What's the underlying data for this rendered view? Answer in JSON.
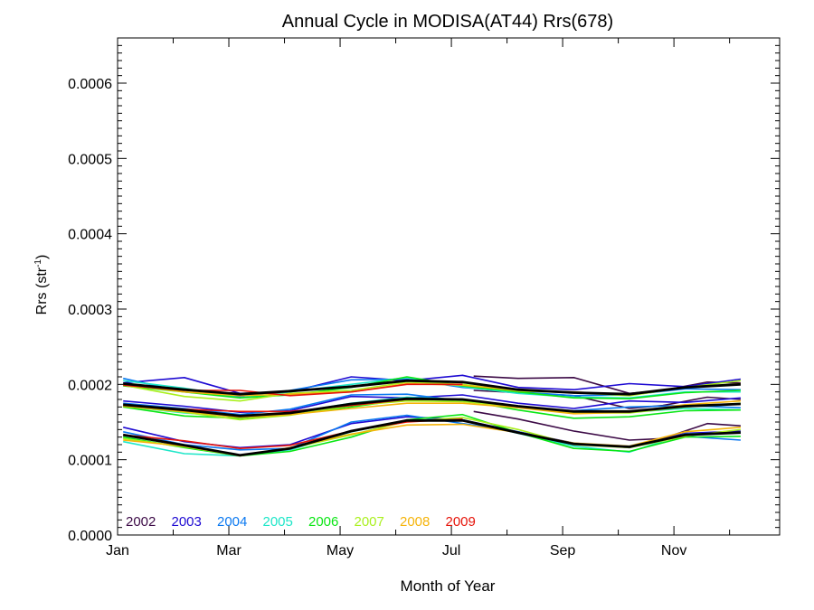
{
  "chart_data": {
    "type": "line",
    "title": "Annual Cycle in MODISA(AT44) Rrs(678)",
    "xlabel": "Month of Year",
    "ylabel_main": "Rrs (str",
    "ylabel_sup": "-1",
    "ylabel_end": ")",
    "xlim": [
      1,
      12.9
    ],
    "ylim": [
      0,
      0.00066
    ],
    "x_ticks": [
      {
        "x": 1,
        "label": "Jan"
      },
      {
        "x": 3,
        "label": "Mar"
      },
      {
        "x": 5,
        "label": "May"
      },
      {
        "x": 7,
        "label": "Jul"
      },
      {
        "x": 9,
        "label": "Sep"
      },
      {
        "x": 11,
        "label": "Nov"
      }
    ],
    "y_ticks": [
      {
        "y": 0.0,
        "label": "0.0000"
      },
      {
        "y": 0.0001,
        "label": "0.0001"
      },
      {
        "y": 0.0002,
        "label": "0.0002"
      },
      {
        "y": 0.0003,
        "label": "0.0003"
      },
      {
        "y": 0.0004,
        "label": "0.0004"
      },
      {
        "y": 0.0005,
        "label": "0.0005"
      },
      {
        "y": 0.0006,
        "label": "0.0006"
      }
    ],
    "legend_position": "bottom-left",
    "series": [
      {
        "name": "2002",
        "color": "#3c0a46",
        "lines": [
          {
            "x": [
              7.4,
              8.2,
              9.2,
              10.2,
              10.8,
              11.6,
              12.2
            ],
            "y": [
              0.000164,
              0.000154,
              0.000138,
              0.000126,
              0.000128,
              0.000148,
              0.000145
            ]
          },
          {
            "x": [
              7.4,
              8.2,
              9.2,
              10.2,
              10.8,
              11.6,
              12.2
            ],
            "y": [
              0.000192,
              0.000189,
              0.000185,
              0.000168,
              0.000172,
              0.000183,
              0.00018
            ]
          },
          {
            "x": [
              7.4,
              8.2,
              9.2,
              10.2,
              10.8,
              11.6,
              12.2
            ],
            "y": [
              0.000211,
              0.000208,
              0.000209,
              0.000188,
              0.000192,
              0.000203,
              0.000202
            ]
          }
        ]
      },
      {
        "name": "2003",
        "color": "#1e0ad2",
        "lines": [
          {
            "x": [
              1.1,
              2.2,
              3.2,
              4.1,
              5.2,
              6.2,
              7.2,
              8.2,
              9.2,
              10.2,
              11.2,
              12.2
            ],
            "y": [
              0.000143,
              0.000124,
              0.000116,
              0.00012,
              0.000148,
              0.000157,
              0.000153,
              0.000137,
              0.000122,
              0.000116,
              0.000135,
              0.000138
            ]
          },
          {
            "x": [
              1.1,
              2.2,
              3.2,
              4.1,
              5.2,
              6.2,
              7.2,
              8.2,
              9.2,
              10.2,
              11.2,
              12.2
            ],
            "y": [
              0.000178,
              0.000171,
              0.000163,
              0.000165,
              0.000184,
              0.000182,
              0.000186,
              0.000175,
              0.000168,
              0.000178,
              0.000176,
              0.000182
            ]
          },
          {
            "x": [
              1.1,
              2.2,
              3.2,
              4.1,
              5.2,
              6.2,
              7.2,
              8.2,
              9.2,
              10.2,
              11.2,
              12.2
            ],
            "y": [
              0.000202,
              0.000209,
              0.000188,
              0.00019,
              0.00021,
              0.000205,
              0.000212,
              0.000196,
              0.000193,
              0.000201,
              0.000197,
              0.000207
            ]
          }
        ]
      },
      {
        "name": "2004",
        "color": "#0a78f0",
        "lines": [
          {
            "x": [
              1.1,
              2.2,
              3.2,
              4.1,
              5.2,
              6.2,
              7.2,
              8.2,
              9.2,
              10.2,
              11.2,
              12.2
            ],
            "y": [
              0.000137,
              0.00012,
              0.000113,
              0.000115,
              0.00015,
              0.000159,
              0.000148,
              0.000137,
              0.000121,
              0.000118,
              0.000131,
              0.000126
            ]
          },
          {
            "x": [
              1.1,
              2.2,
              3.2,
              4.1,
              5.2,
              6.2,
              7.2,
              8.2,
              9.2,
              10.2,
              11.2,
              12.2
            ],
            "y": [
              0.000175,
              0.000168,
              0.00016,
              0.000167,
              0.000186,
              0.000187,
              0.000178,
              0.00017,
              0.000165,
              0.00017,
              0.000172,
              0.000169
            ]
          },
          {
            "x": [
              1.1,
              2.2,
              3.2,
              4.1,
              5.2,
              6.2,
              7.2,
              8.2,
              9.2,
              10.2,
              11.2,
              12.2
            ],
            "y": [
              0.000208,
              0.00019,
              0.000184,
              0.000192,
              0.000206,
              0.000207,
              0.000196,
              0.00019,
              0.000185,
              0.000186,
              0.000194,
              0.000193
            ]
          }
        ]
      },
      {
        "name": "2005",
        "color": "#1ee6c8",
        "lines": [
          {
            "x": [
              1.1,
              2.2,
              3.2,
              4.1,
              5.2,
              6.2,
              7.2,
              8.2,
              9.2,
              10.2,
              11.2,
              12.2
            ],
            "y": [
              0.000124,
              0.000108,
              0.000105,
              0.000113,
              0.000137,
              0.000152,
              0.000152,
              0.000135,
              0.000118,
              0.00011,
              0.000134,
              0.000136
            ]
          },
          {
            "x": [
              1.1,
              2.2,
              3.2,
              4.1,
              5.2,
              6.2,
              7.2,
              8.2,
              9.2,
              10.2,
              11.2,
              12.2
            ],
            "y": [
              0.000171,
              0.000162,
              0.000157,
              0.000162,
              0.000175,
              0.000183,
              0.00018,
              0.000169,
              0.000164,
              0.000163,
              0.000168,
              0.000166
            ]
          },
          {
            "x": [
              1.1,
              2.2,
              3.2,
              4.1,
              5.2,
              6.2,
              7.2,
              8.2,
              9.2,
              10.2,
              11.2,
              12.2
            ],
            "y": [
              0.000205,
              0.000195,
              0.000182,
              0.00019,
              0.0002,
              0.000209,
              0.000197,
              0.000188,
              0.000183,
              0.000182,
              0.00019,
              0.00019
            ]
          }
        ]
      },
      {
        "name": "2006",
        "color": "#0ae614",
        "lines": [
          {
            "x": [
              1.1,
              2.2,
              3.2,
              4.1,
              5.2,
              6.2,
              7.2,
              8.2,
              9.2,
              10.2,
              11.2,
              12.2
            ],
            "y": [
              0.00013,
              0.000116,
              0.000105,
              0.000111,
              0.00013,
              0.000153,
              0.00016,
              0.000136,
              0.000115,
              0.000111,
              0.00013,
              0.000131
            ]
          },
          {
            "x": [
              1.1,
              2.2,
              3.2,
              4.1,
              5.2,
              6.2,
              7.2,
              8.2,
              9.2,
              10.2,
              11.2,
              12.2
            ],
            "y": [
              0.00017,
              0.000158,
              0.000155,
              0.00016,
              0.00017,
              0.00018,
              0.000179,
              0.000166,
              0.000155,
              0.000157,
              0.000165,
              0.000166
            ]
          },
          {
            "x": [
              1.1,
              2.2,
              3.2,
              4.1,
              5.2,
              6.2,
              7.2,
              8.2,
              9.2,
              10.2,
              11.2,
              12.2
            ],
            "y": [
              0.000198,
              0.00019,
              0.000182,
              0.000186,
              0.000196,
              0.00021,
              0.000198,
              0.00019,
              0.000182,
              0.000181,
              0.000189,
              0.000192
            ]
          }
        ]
      },
      {
        "name": "2007",
        "color": "#aaf01e",
        "lines": [
          {
            "x": [
              1.1,
              2.2,
              3.2,
              4.1,
              5.2,
              6.2,
              7.2,
              8.2,
              9.2,
              10.2,
              11.2,
              12.2
            ],
            "y": [
              0.000128,
              0.000117,
              0.000106,
              0.000115,
              0.000133,
              0.000151,
              0.000156,
              0.00014,
              0.00012,
              0.000116,
              0.000131,
              0.00014
            ]
          },
          {
            "x": [
              1.1,
              2.2,
              3.2,
              4.1,
              5.2,
              6.2,
              7.2,
              8.2,
              9.2,
              10.2,
              11.2,
              12.2
            ],
            "y": [
              0.000171,
              0.000163,
              0.000153,
              0.000159,
              0.000172,
              0.000178,
              0.000177,
              0.00017,
              0.000162,
              0.000162,
              0.00017,
              0.000175
            ]
          },
          {
            "x": [
              1.1,
              2.2,
              3.2,
              4.1,
              5.2,
              6.2,
              7.2,
              8.2,
              9.2,
              10.2,
              11.2,
              12.2
            ],
            "y": [
              0.000199,
              0.000184,
              0.000178,
              0.000188,
              0.000192,
              0.000203,
              0.0002,
              0.000191,
              0.000189,
              0.000185,
              0.000196,
              0.000205
            ]
          }
        ]
      },
      {
        "name": "2008",
        "color": "#f5b40a",
        "lines": [
          {
            "x": [
              1.1,
              2.2,
              3.2,
              4.1,
              5.2,
              6.2,
              7.2,
              8.2,
              9.2,
              10.2,
              11.2,
              12.2
            ],
            "y": [
              0.000126,
              0.000118,
              0.000105,
              0.000116,
              0.000134,
              0.000146,
              0.000147,
              0.000136,
              0.000122,
              0.000118,
              0.000137,
              0.000143
            ]
          },
          {
            "x": [
              1.1,
              2.2,
              3.2,
              4.1,
              5.2,
              6.2,
              7.2,
              8.2,
              9.2,
              10.2,
              11.2,
              12.2
            ],
            "y": [
              0.000171,
              0.000164,
              0.000156,
              0.00016,
              0.000168,
              0.000175,
              0.000175,
              0.000169,
              0.000161,
              0.000163,
              0.000173,
              0.000178
            ]
          },
          {
            "x": [
              1.1,
              2.2,
              3.2,
              4.1,
              5.2,
              6.2,
              7.2,
              8.2,
              9.2,
              10.2,
              11.2,
              12.2
            ],
            "y": [
              0.0002,
              0.00019,
              0.000185,
              0.000187,
              0.00019,
              0.000201,
              0.000199,
              0.000192,
              0.00019,
              0.000186,
              0.000196,
              0.000201
            ]
          }
        ]
      },
      {
        "name": "2009",
        "color": "#e6140a",
        "lines": [
          {
            "x": [
              1.1,
              2.2,
              3.2,
              4.1,
              5.2,
              6.2,
              7.2
            ],
            "y": [
              0.000133,
              0.000125,
              0.000115,
              0.000119,
              0.000138,
              0.00015,
              0.000154
            ]
          },
          {
            "x": [
              1.1,
              2.2,
              3.2,
              4.1,
              5.2,
              6.2,
              7.2
            ],
            "y": [
              0.000173,
              0.000167,
              0.000164,
              0.000164,
              0.000172,
              0.00018,
              0.00018
            ]
          },
          {
            "x": [
              1.1,
              2.2,
              3.2,
              4.1,
              5.2,
              6.2,
              7.2
            ],
            "y": [
              0.000199,
              0.000192,
              0.000192,
              0.000185,
              0.00019,
              0.0002,
              0.0002
            ]
          }
        ]
      },
      {
        "name": "",
        "color": "#000000",
        "bold": true,
        "lines": [
          {
            "x": [
              1.1,
              2.2,
              3.2,
              4.1,
              5.2,
              6.2,
              7.2,
              8.2,
              9.2,
              10.2,
              11.2,
              12.2
            ],
            "y": [
              0.000133,
              0.000119,
              0.000106,
              0.000115,
              0.000138,
              0.000152,
              0.000152,
              0.000136,
              0.000121,
              0.000117,
              0.000133,
              0.000136
            ]
          },
          {
            "x": [
              1.1,
              2.2,
              3.2,
              4.1,
              5.2,
              6.2,
              7.2,
              8.2,
              9.2,
              10.2,
              11.2,
              12.2
            ],
            "y": [
              0.000173,
              0.000166,
              0.000158,
              0.000162,
              0.000174,
              0.000181,
              0.00018,
              0.000171,
              0.000164,
              0.000164,
              0.000171,
              0.000174
            ]
          },
          {
            "x": [
              1.1,
              2.2,
              3.2,
              4.1,
              5.2,
              6.2,
              7.2,
              8.2,
              9.2,
              10.2,
              11.2,
              12.2
            ],
            "y": [
              0.000201,
              0.000193,
              0.000187,
              0.000191,
              0.000197,
              0.000205,
              0.000203,
              0.000193,
              0.000189,
              0.000187,
              0.000196,
              0.0002
            ]
          }
        ]
      }
    ]
  }
}
